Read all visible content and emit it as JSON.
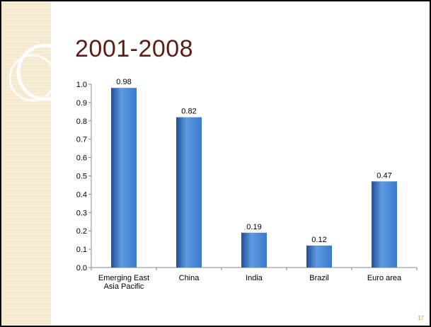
{
  "slide": {
    "title": "2001-2008",
    "page_number": "17"
  },
  "colors": {
    "bar_top": "#5f9be0",
    "bar_mid": "#3a78cc",
    "bar_bottom": "#1f4f97",
    "side_band": "#f3e7c6",
    "title": "#5a1f16",
    "page_number": "#d4a03c"
  },
  "chart_data": {
    "type": "bar",
    "categories": [
      "Emerging East Asia Pacific",
      "China",
      "India",
      "Brazil",
      "Euro area"
    ],
    "category_lines": [
      [
        "Emerging East",
        "Asia Pacific"
      ],
      [
        "China"
      ],
      [
        "India"
      ],
      [
        "Brazil"
      ],
      [
        "Euro area"
      ]
    ],
    "values": [
      0.98,
      0.82,
      0.19,
      0.12,
      0.47
    ],
    "data_labels": [
      "0.98",
      "0.82",
      "0.19",
      "0.12",
      "0.47"
    ],
    "ylim": [
      0,
      1.0
    ],
    "yticks": [
      "0.0",
      "0.1",
      "0.2",
      "0.3",
      "0.4",
      "0.5",
      "0.6",
      "0.7",
      "0.8",
      "0.9",
      "1.0"
    ],
    "grid": false,
    "legend": "none"
  }
}
